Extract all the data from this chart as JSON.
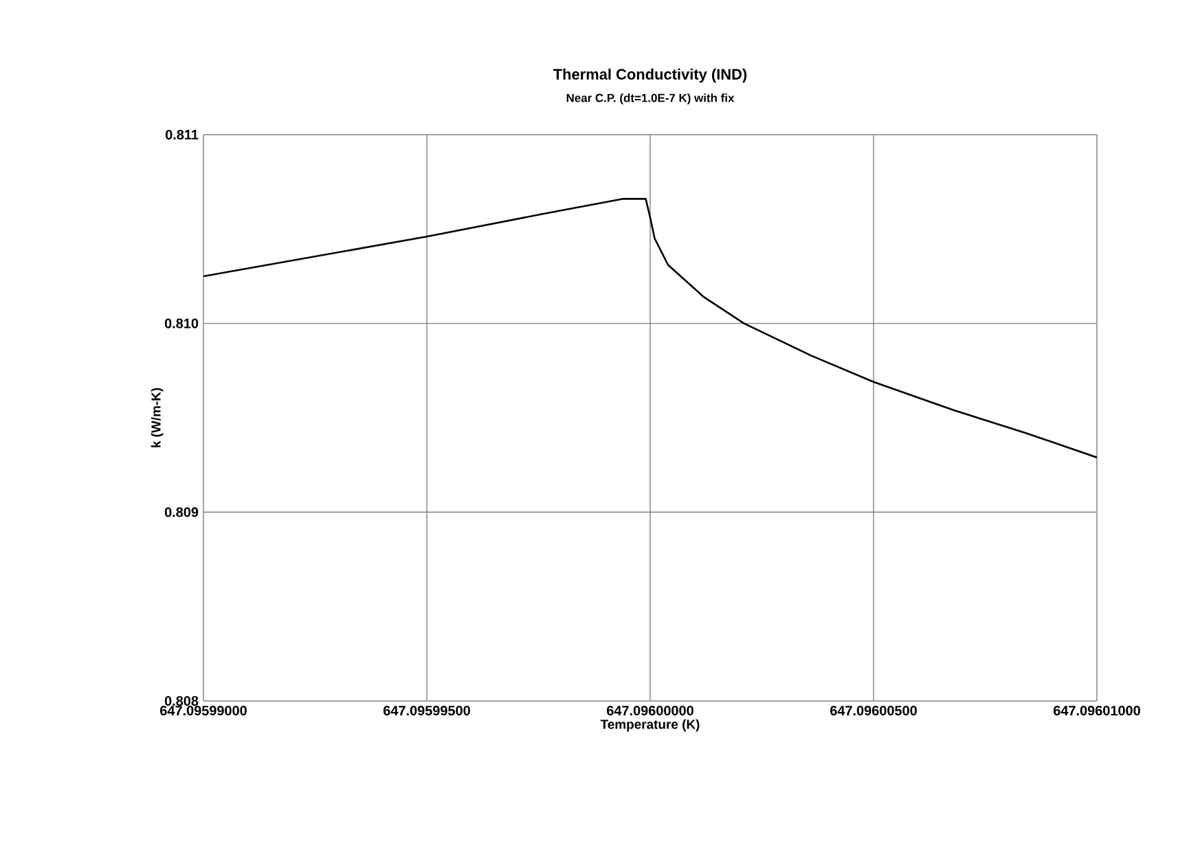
{
  "chart_data": {
    "type": "line",
    "title": "Thermal Conductivity (IND)",
    "subtitle": "Near C.P. (dt=1.0E-7 K) with fix",
    "xlabel": "Temperature (K)",
    "ylabel": "k (W/m-K)",
    "xlim": [
      647.09599,
      647.09601
    ],
    "xticks": [
      {
        "value": 647.09599,
        "label": "647.09599000"
      },
      {
        "value": 647.095995,
        "label": "647.09599500"
      },
      {
        "value": 647.096,
        "label": "647.09600000"
      },
      {
        "value": 647.096005,
        "label": "647.09600500"
      },
      {
        "value": 647.09601,
        "label": "647.09601000"
      }
    ],
    "ylim": [
      0.808,
      0.811
    ],
    "yticks": [
      0.808,
      0.809,
      {
        "value": 0.81,
        "label": "0.810"
      },
      0.811
    ],
    "grid": true,
    "marker": "none",
    "line_style": "solid",
    "series": [
      {
        "color": "#000000",
        "x": [
          647.09599,
          647.095995,
          647.0959976,
          647.0959994,
          647.0959999,
          647.096,
          647.0960001,
          647.0960004,
          647.0960012,
          647.0960021,
          647.0960036,
          647.096005,
          647.0960068,
          647.0960084,
          647.09601
        ],
        "values": [
          0.81025,
          0.81046,
          0.81058,
          0.81066,
          0.81066,
          0.81056,
          0.81045,
          0.81031,
          0.81014,
          0.81,
          0.80983,
          0.80969,
          0.80954,
          0.80942,
          0.80929
        ]
      }
    ]
  }
}
